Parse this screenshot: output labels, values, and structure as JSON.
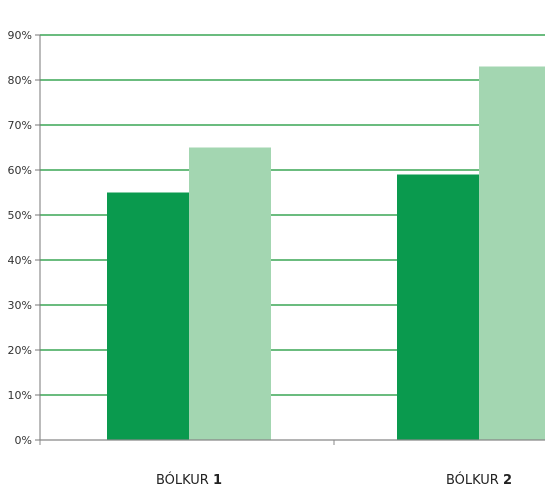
{
  "chart_data": {
    "type": "bar",
    "categories": [
      {
        "prefix": "BÓLKUR",
        "number": "1"
      },
      {
        "prefix": "BÓLKUR",
        "number": "2"
      }
    ],
    "series": [
      {
        "color": "#0a9a4e",
        "values": [
          55,
          59
        ]
      },
      {
        "color": "#a3d6b1",
        "values": [
          65,
          83
        ]
      }
    ],
    "ylim": [
      0,
      90
    ],
    "yticks": [
      0,
      10,
      20,
      30,
      40,
      50,
      60,
      70,
      80,
      90
    ],
    "ytick_labels": [
      "0%",
      "10%",
      "20%",
      "30%",
      "40%",
      "50%",
      "60%",
      "70%",
      "80%",
      "90%"
    ],
    "grid": true,
    "grid_color": "#3aa655",
    "legend": "none",
    "title": "",
    "xlabel": "",
    "ylabel": ""
  }
}
